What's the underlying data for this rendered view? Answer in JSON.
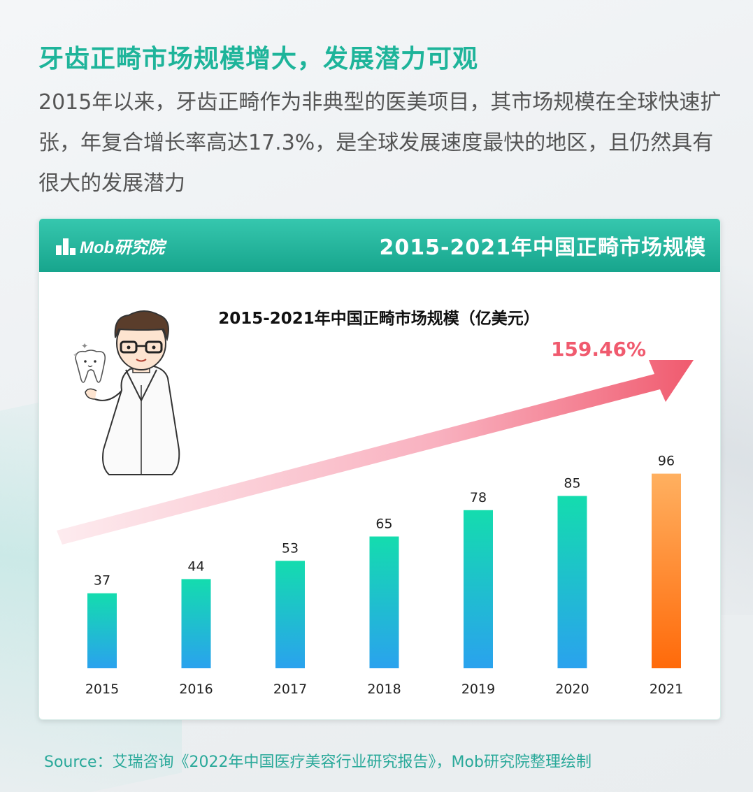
{
  "headline": "牙齿正畸市场规模增大，发展潜力可观",
  "intro": "2015年以来，牙齿正畸作为非典型的医美项目，其市场规模在全球快速扩张，年复合增长率高达17.3%，是全球发展速度最快的地区，且仍然具有很大的发展潜力",
  "card": {
    "logo_text": "Mob研究院",
    "header_title": "2015-2021年中国正畸市场规模"
  },
  "chart_data": {
    "type": "bar",
    "title": "2015-2021年中国正畸市场规模（亿美元）",
    "categories": [
      "2015",
      "2016",
      "2017",
      "2018",
      "2019",
      "2020",
      "2021"
    ],
    "values": [
      37,
      44,
      53,
      65,
      78,
      85,
      96
    ],
    "ylim": [
      0,
      100
    ],
    "growth_label": "159.46%",
    "colors": {
      "bar_top": "#14dcae",
      "bar_bottom": "#2aa2ee",
      "highlight_top": "#ffb060",
      "highlight_bottom": "#ff6a0a",
      "growth": "#f05a6e"
    }
  },
  "source": "Source：艾瑞咨询《2022年中国医疗美容行业研究报告》，Mob研究院整理绘制"
}
